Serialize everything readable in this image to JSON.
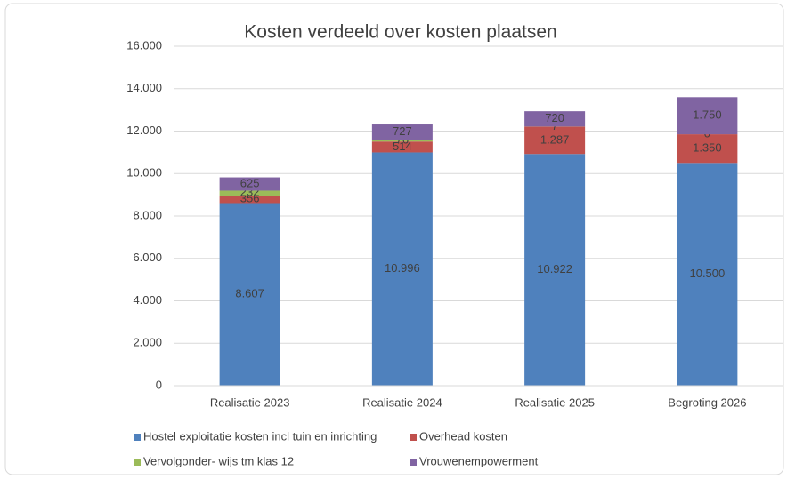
{
  "chart_data": {
    "type": "stacked_bar",
    "title": "Kosten verdeeld over kosten plaatsen",
    "categories": [
      "Realisatie 2023",
      "Realisatie 2024",
      "Realisatie 2025",
      "Begroting 2026"
    ],
    "series": [
      {
        "name": "Hostel exploitatie kosten incl tuin en inrichting",
        "color": "#4f81bd",
        "values": [
          8607,
          10996,
          10922,
          10500
        ],
        "value_labels": [
          "8.607",
          "10.996",
          "10.922",
          "10.500"
        ]
      },
      {
        "name": "Overhead kosten",
        "color": "#c0504d",
        "values": [
          356,
          514,
          1287,
          1350
        ],
        "value_labels": [
          "356",
          "514",
          "1.287",
          "1.350"
        ]
      },
      {
        "name": "Vervolgonder- wijs tm klas 12",
        "color": "#9bbb59",
        "values": [
          232,
          76,
          7,
          0
        ],
        "value_labels": [
          "232",
          "76",
          "7",
          "0"
        ]
      },
      {
        "name": "Vrouwenempowerment",
        "color": "#8064a2",
        "values": [
          625,
          727,
          720,
          1750
        ],
        "value_labels": [
          "625",
          "727",
          "720",
          "1.750"
        ]
      }
    ],
    "ylim": [
      0,
      16000
    ],
    "yticks": [
      0,
      {
        "value": 2000,
        "label": "2.000"
      },
      {
        "value": 4000,
        "label": "4.000"
      },
      {
        "value": 6000,
        "label": "6.000"
      },
      {
        "value": 8000,
        "label": "8.000"
      },
      {
        "value": 10000,
        "label": "10.000"
      },
      {
        "value": 12000,
        "label": "12.000"
      },
      {
        "value": 14000,
        "label": "14.000"
      },
      {
        "value": 16000,
        "label": "16.000"
      }
    ],
    "grid": true,
    "legend": "bottom"
  }
}
